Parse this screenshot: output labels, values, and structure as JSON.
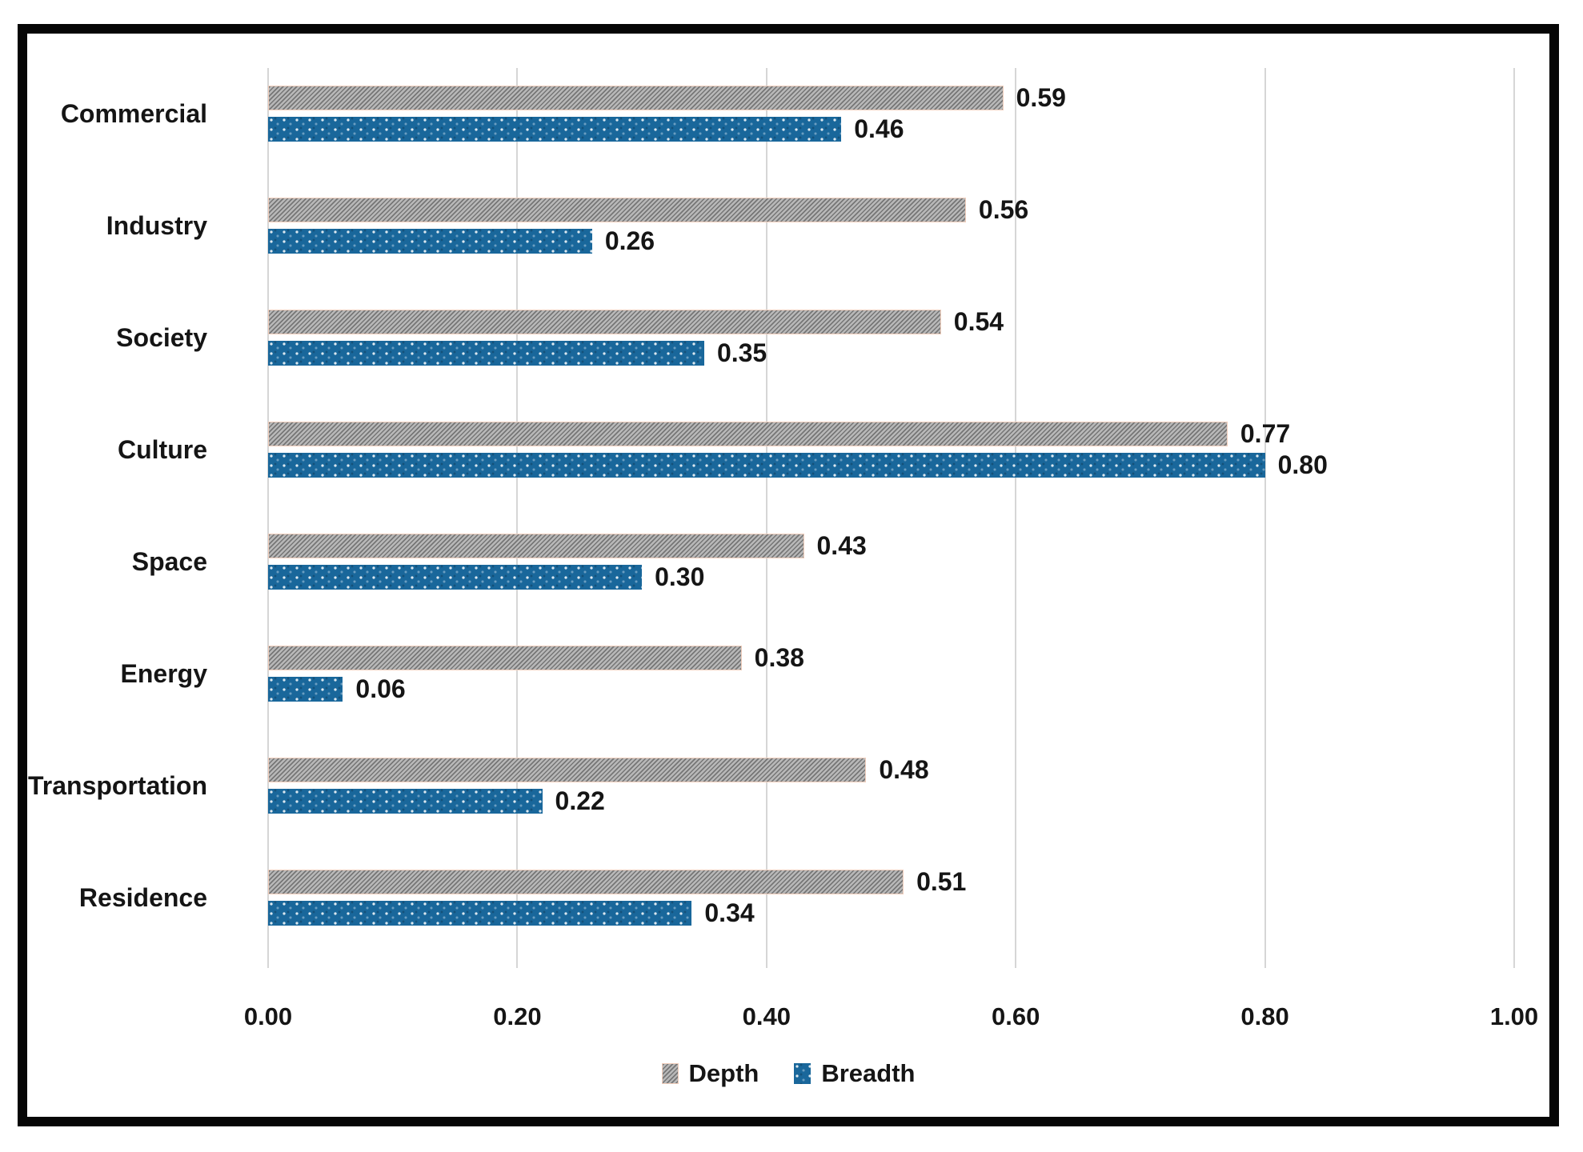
{
  "chart_data": {
    "type": "bar",
    "orientation": "horizontal",
    "title": "",
    "categories": [
      "Commercial",
      "Industry",
      "Society",
      "Culture",
      "Space",
      "Energy",
      "Transportation",
      "Residence"
    ],
    "series": [
      {
        "name": "Depth",
        "pattern": "diagonal-hatch",
        "color": "#a9a9a9",
        "values": [
          0.59,
          0.56,
          0.54,
          0.77,
          0.43,
          0.38,
          0.48,
          0.51
        ]
      },
      {
        "name": "Breadth",
        "pattern": "dots",
        "color": "#19679b",
        "values": [
          0.46,
          0.26,
          0.35,
          0.8,
          0.3,
          0.06,
          0.22,
          0.34
        ]
      }
    ],
    "xlim": [
      0,
      1.0
    ],
    "x_ticks": [
      "0.00",
      "0.20",
      "0.40",
      "0.60",
      "0.80",
      "1.00"
    ],
    "grid": "vertical-only",
    "legend_position": "bottom-center",
    "value_label_format": "two-decimals"
  },
  "legend": {
    "items": [
      {
        "label": "Depth",
        "color": "#a9a9a9"
      },
      {
        "label": "Breadth",
        "color": "#19679b"
      }
    ]
  },
  "colors": {
    "depth_bar": "#a9a9a9",
    "depth_bar_border": "#f0cdbb",
    "breadth_bar": "#19679b",
    "gridline": "#d6d6d6",
    "text": "#151515",
    "frame_border": "#060606",
    "background": "#ffffff"
  }
}
